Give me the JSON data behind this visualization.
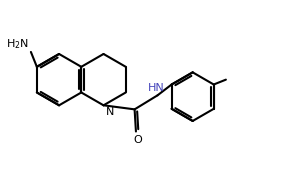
{
  "bg": "#ffffff",
  "lc": "#000000",
  "nh_color": "#4444bb",
  "lw": 1.5,
  "xlim": [
    0.0,
    10.5
  ],
  "ylim": [
    0.5,
    7.0
  ],
  "figsize": [
    2.86,
    1.89
  ],
  "dpi": 100
}
